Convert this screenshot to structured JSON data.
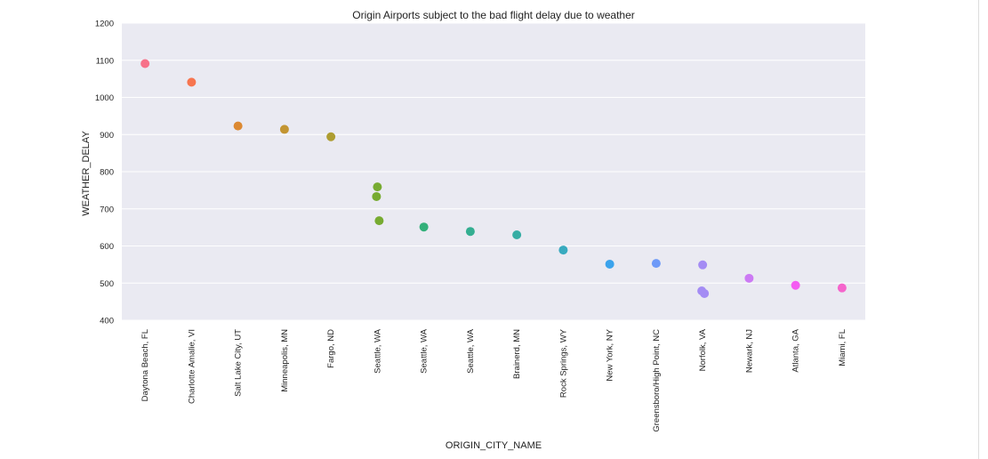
{
  "chart_data": {
    "type": "scatter",
    "title": "Origin Airports subject to the bad flight delay due to weather",
    "xlabel": "ORIGIN_CITY_NAME",
    "ylabel": "WEATHER_DELAY",
    "ylim": [
      400,
      1200
    ],
    "yticks": [
      400,
      500,
      600,
      700,
      800,
      900,
      1000,
      1100,
      1200
    ],
    "grid": true,
    "legend": "none",
    "background_color": "#eaeaf2",
    "categories": [
      "Daytona Beach, FL",
      "Charlotte Amalie, VI",
      "Salt Lake City, UT",
      "Minneapolis, MN",
      "Fargo, ND",
      "Seattle, WA",
      "Seattle, WA",
      "Seattle, WA",
      "Brainerd, MN",
      "Rock Springs, WY",
      "New York, NY",
      "Greensboro/High Point, NC",
      "Norfolk, VA",
      "Newark, NJ",
      "Atlanta, GA",
      "Miami, FL"
    ],
    "colors": [
      "#f77189",
      "#f7754f",
      "#dc8932",
      "#c39532",
      "#ae9d31",
      "#77ab31",
      "#33b07a",
      "#34ae91",
      "#36ada4",
      "#38aabf",
      "#3ba3ec",
      "#6e9af8",
      "#a48cf4",
      "#cc7af4",
      "#f45cf2",
      "#f565cc"
    ],
    "points": [
      {
        "category": 0,
        "value": 1091
      },
      {
        "category": 1,
        "value": 1041
      },
      {
        "category": 2,
        "value": 923
      },
      {
        "category": 3,
        "value": 914
      },
      {
        "category": 4,
        "value": 894
      },
      {
        "category": 5,
        "value": 759
      },
      {
        "category": 5,
        "value": 733
      },
      {
        "category": 5,
        "value": 668
      },
      {
        "category": 6,
        "value": 651
      },
      {
        "category": 7,
        "value": 639
      },
      {
        "category": 8,
        "value": 630
      },
      {
        "category": 9,
        "value": 589
      },
      {
        "category": 10,
        "value": 551
      },
      {
        "category": 11,
        "value": 553
      },
      {
        "category": 12,
        "value": 549
      },
      {
        "category": 12,
        "value": 479
      },
      {
        "category": 12,
        "value": 472
      },
      {
        "category": 13,
        "value": 513
      },
      {
        "category": 14,
        "value": 494
      },
      {
        "category": 15,
        "value": 487
      }
    ]
  }
}
